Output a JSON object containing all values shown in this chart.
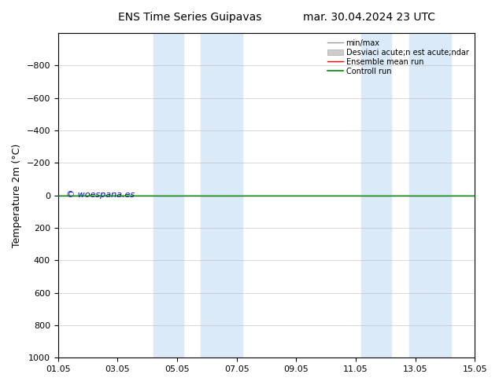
{
  "title": "ENS Time Series Guipavas",
  "title2": "mar. 30.04.2024 23 UTC",
  "ylabel": "Temperature 2m (°C)",
  "ylim_bottom": 1000,
  "ylim_top": -1000,
  "yticks": [
    -800,
    -600,
    -400,
    -200,
    0,
    200,
    400,
    600,
    800,
    1000
  ],
  "xtick_labels": [
    "01.05",
    "03.05",
    "05.05",
    "07.05",
    "09.05",
    "11.05",
    "13.05",
    "15.05"
  ],
  "xtick_positions": [
    0,
    2,
    4,
    6,
    8,
    10,
    12,
    14
  ],
  "xlim": [
    0,
    14
  ],
  "shade_regions": [
    [
      3.2,
      4.2
    ],
    [
      4.8,
      6.2
    ],
    [
      10.2,
      11.2
    ],
    [
      11.8,
      13.2
    ]
  ],
  "shade_color": "#daeaf8",
  "ensemble_mean_color": "#ff0000",
  "control_run_color": "#008800",
  "minmax_color": "#999999",
  "std_dev_color": "#cccccc",
  "watermark_text": "© woespana.es",
  "watermark_color": "#0000cc",
  "legend_labels": [
    "min/max",
    "Desviaci acute;n est acute;ndar",
    "Ensemble mean run",
    "Controll run"
  ],
  "legend_colors": [
    "#999999",
    "#cccccc",
    "#ff0000",
    "#008800"
  ],
  "background_color": "#ffffff",
  "grid_color": "#bbbbbb",
  "figsize": [
    6.34,
    4.9
  ],
  "dpi": 100
}
